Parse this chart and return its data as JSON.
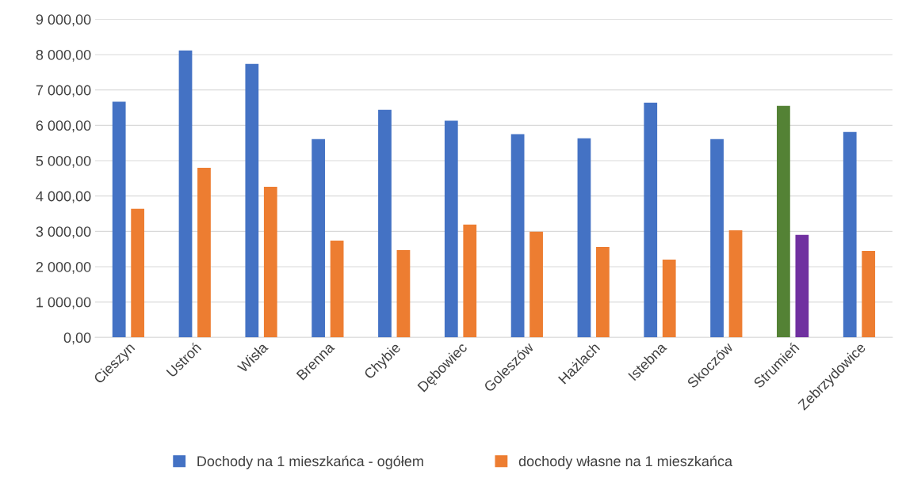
{
  "chart_data": {
    "type": "bar",
    "categories": [
      "Cieszyn",
      "Ustroń",
      "Wisła",
      "Brenna",
      "Chybie",
      "Dębowiec",
      "Goleszów",
      "Hażlach",
      "Istebna",
      "Skoczów",
      "Strumień",
      "Zebrzydowice"
    ],
    "series": [
      {
        "name": "Dochody na 1 mieszkańca - ogółem",
        "color": "#4472c4",
        "colors": [
          "#4472c4",
          "#4472c4",
          "#4472c4",
          "#4472c4",
          "#4472c4",
          "#4472c4",
          "#4472c4",
          "#4472c4",
          "#4472c4",
          "#4472c4",
          "#548235",
          "#4472c4"
        ],
        "values": [
          6670,
          8120,
          7740,
          5610,
          6440,
          6130,
          5750,
          5630,
          6640,
          5610,
          6550,
          5810
        ]
      },
      {
        "name": "dochody własne na 1 mieszkańca",
        "color": "#ed7d31",
        "colors": [
          "#ed7d31",
          "#ed7d31",
          "#ed7d31",
          "#ed7d31",
          "#ed7d31",
          "#ed7d31",
          "#ed7d31",
          "#ed7d31",
          "#ed7d31",
          "#ed7d31",
          "#7030a0",
          "#ed7d31"
        ],
        "values": [
          3640,
          4800,
          4260,
          2740,
          2470,
          3190,
          2990,
          2560,
          2200,
          3030,
          2900,
          2450
        ]
      }
    ],
    "ylim": [
      0,
      9000
    ],
    "yticks": [
      {
        "value": 0,
        "label": "0,00"
      },
      {
        "value": 1000,
        "label": "1 000,00"
      },
      {
        "value": 2000,
        "label": "2 000,00"
      },
      {
        "value": 3000,
        "label": "3 000,00"
      },
      {
        "value": 4000,
        "label": "4 000,00"
      },
      {
        "value": 5000,
        "label": "5 000,00"
      },
      {
        "value": 6000,
        "label": "6 000,00"
      },
      {
        "value": 7000,
        "label": "7 000,00"
      },
      {
        "value": 8000,
        "label": "8 000,00"
      },
      {
        "value": 9000,
        "label": "9 000,00"
      }
    ],
    "grid": "y",
    "legend": "bottom"
  }
}
